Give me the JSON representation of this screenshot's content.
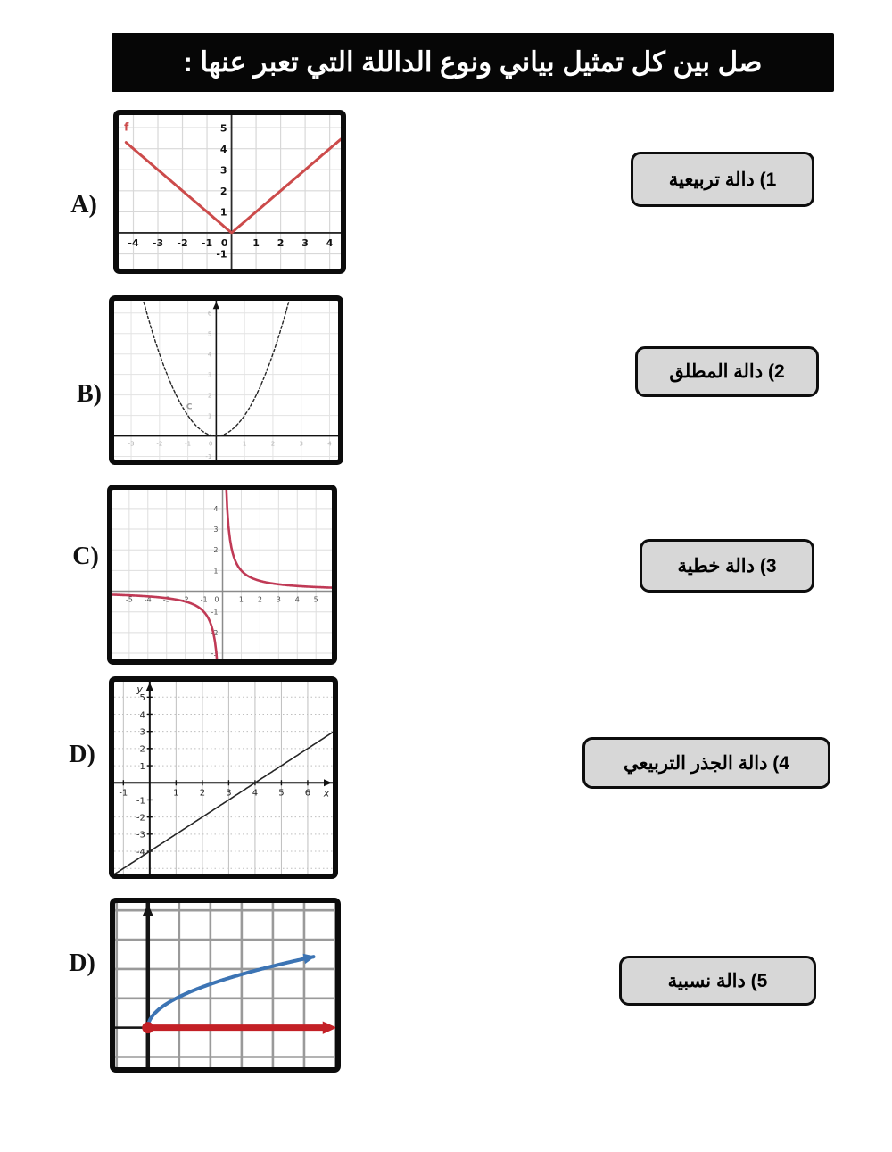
{
  "header": {
    "title": "صل بين كل تمثيل بياني ونوع الداللة التي تعبر عنها :",
    "bg_color": "#060606",
    "text_color": "#ffffff"
  },
  "cards": [
    {
      "label": "1) دالة تربيعية"
    },
    {
      "label": "2) دالة المطلق"
    },
    {
      "label": "3) دالة خطية"
    },
    {
      "label": "4) دالة الجذر التربيعي"
    },
    {
      "label": "5) دالة نسبية"
    }
  ],
  "chart_data": [
    {
      "panel_letter": "A)",
      "type": "line",
      "function": "absolute_value",
      "formula": "y = |x|",
      "xlim": [
        -4.6,
        4.45
      ],
      "ylim": [
        -1.7,
        5.6
      ],
      "x_ticks": [
        -4,
        -3,
        -2,
        -1,
        1,
        2,
        3,
        4
      ],
      "y_ticks": [
        -1,
        1,
        2,
        3,
        4,
        5
      ],
      "show_zero": true,
      "x_start": -4.3,
      "curve_color": "#cc4b4b",
      "curve_width": 3,
      "grid_color": "#d8d8d8",
      "grid_width": 1.2,
      "axis_color": "#2b2b2b",
      "axis_width": 1.8,
      "tick_color": "#111111",
      "tick_size": 11,
      "tick_bold": true,
      "annotations": [
        {
          "text": "f",
          "x": -4.28,
          "y": 4.85,
          "color": "#cc4b4b",
          "size": 12
        }
      ]
    },
    {
      "panel_letter": "B)",
      "type": "line",
      "function": "parabola",
      "formula": "y = x²",
      "xlim": [
        -3.6,
        4.3
      ],
      "ylim": [
        -1.15,
        6.6
      ],
      "x_ticks": [
        -3,
        -2,
        -1,
        1,
        2,
        3,
        4
      ],
      "y_ticks": [
        -1,
        1,
        2,
        3,
        4,
        5,
        6
      ],
      "show_zero": true,
      "curve_color": "#262626",
      "curve_width": 1.4,
      "curve_dash": "3,2.5",
      "grid_color": "#e3e3e3",
      "grid_width": 1,
      "axis_color": "#111111",
      "axis_width": 1.6,
      "axis_arrow_up": true,
      "tick_color": "#b3b3b3",
      "tick_size": 7,
      "annotations": [
        {
          "text": "C",
          "x": -0.95,
          "y": 1.3,
          "color": "#9a9a9a",
          "size": 9
        }
      ]
    },
    {
      "panel_letter": "C)",
      "type": "line",
      "function": "reciprocal",
      "formula": "y = 1/x",
      "k": 1,
      "xlim": [
        -5.9,
        5.85
      ],
      "ylim": [
        -3.3,
        4.9
      ],
      "x_ticks": [
        -5,
        -4,
        -3,
        -2,
        -1,
        1,
        2,
        3,
        4,
        5
      ],
      "y_ticks": [
        -3,
        -2,
        -1,
        1,
        2,
        3,
        4
      ],
      "show_zero": true,
      "curve_color": "#c03a56",
      "curve_width": 2.6,
      "grid_color": "#dedede",
      "grid_width": 1,
      "axis_color": "#8b8b8b",
      "axis_width": 1.5,
      "tick_color": "#4a4a4a",
      "tick_size": 8
    },
    {
      "panel_letter": "D)",
      "type": "line",
      "function": "linear",
      "formula": "y = x − 4",
      "slope": 1,
      "intercept": -4,
      "xlim": [
        -1.35,
        6.95
      ],
      "ylim": [
        -5.3,
        5.9
      ],
      "x_ticks": [
        -1,
        1,
        2,
        3,
        4,
        5,
        6
      ],
      "y_ticks": [
        -4,
        -3,
        -2,
        -1,
        1,
        2,
        3,
        4,
        5
      ],
      "x_axis_label": "x",
      "y_axis_label": "y",
      "curve_color": "#262626",
      "curve_width": 1.6,
      "grid_color": "#bfbfbf",
      "grid_width": 1,
      "grid_h_dash": "1.5,3",
      "axis_color": "#111111",
      "axis_width": 2,
      "axis_arrow_up": true,
      "axis_arrow_right": true,
      "tick_marks": true,
      "tick_color": "#222222",
      "tick_size": 10
    },
    {
      "panel_letter": "D)",
      "type": "line",
      "function": "sqrt",
      "formula": "y = √x",
      "sqrt_scale": 1.05,
      "sqrt_end": 5.3,
      "xlim": [
        -1.05,
        6.0
      ],
      "ylim": [
        -1.35,
        4.25
      ],
      "x_ticks": [],
      "y_ticks": [],
      "end_arrow": true,
      "curve_color": "#3c74b4",
      "curve_width": 4,
      "grid_color": "#9a9a9a",
      "grid_width": 2.6,
      "axis_color": "#151515",
      "axis_width": 4.5,
      "axis_arrow_up": true,
      "neg_x_segment": true,
      "ray": {
        "color": "#c32026",
        "width": 7,
        "from": 0,
        "to": 5.65
      },
      "origin_dot": {
        "color": "#c32026",
        "r": 6.5
      },
      "tick_color": "#000000",
      "tick_size": 0
    }
  ]
}
